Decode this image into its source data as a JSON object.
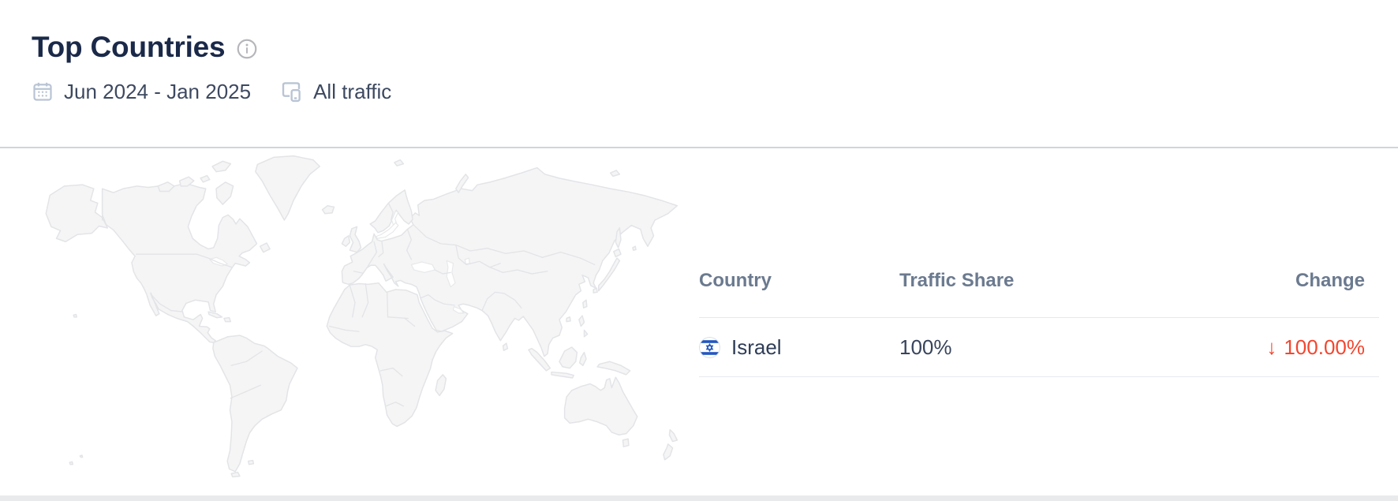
{
  "widget": {
    "title": "Top Countries",
    "date_range": "Jun 2024 - Jan 2025",
    "traffic_filter": "All traffic"
  },
  "map": {
    "name": "world-map",
    "description": "light gray world map with country borders"
  },
  "table": {
    "headers": {
      "country": "Country",
      "traffic_share": "Traffic Share",
      "change": "Change"
    },
    "rows": [
      {
        "country": "Israel",
        "flag": "israel-flag-icon",
        "traffic_share": "100%",
        "traffic_share_percent": 100,
        "change_arrow": "↓",
        "change_value": "100.00%",
        "change_direction": "down"
      }
    ]
  },
  "icons": {
    "info": "info-icon",
    "calendar": "calendar-icon",
    "all_traffic": "desktop-and-mobile-icon"
  },
  "colors": {
    "title_text": "#1b2949",
    "subtitle_text": "#3d4960",
    "muted_icon": "#b9c4d4",
    "table_header_text": "#6b7a8f",
    "row_text": "#2f3d57",
    "share_bar": "#4d6ff2",
    "negative_change": "#f3462e",
    "map_land_fill": "#f5f5f6",
    "map_border": "#e3e4e7",
    "divider": "#cfd5db"
  }
}
